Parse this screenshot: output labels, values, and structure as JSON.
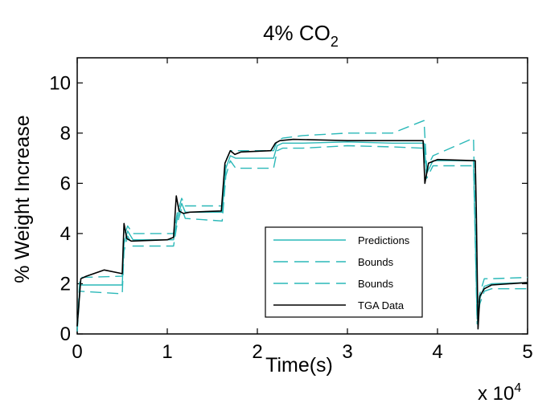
{
  "chart_data": {
    "type": "line",
    "title": "4% CO",
    "title_subscript": "2",
    "xlabel": "Time(s)",
    "ylabel": "% Weight Increase",
    "x_multiplier_label": "x 10",
    "x_multiplier_exponent": "4",
    "xlim": [
      0,
      5
    ],
    "ylim": [
      0,
      11
    ],
    "xticks": [
      0,
      1,
      2,
      3,
      4,
      5
    ],
    "yticks": [
      0,
      2,
      4,
      6,
      8,
      10
    ],
    "grid": false,
    "legend_position": "lower-right",
    "colors": {
      "predictions": "#2ab8b8",
      "bounds": "#2ab8b8",
      "tga": "#000000",
      "axis": "#000000"
    },
    "series": [
      {
        "name": "Predictions",
        "style": "solid",
        "color": "#2ab8b8",
        "x": [
          0,
          0.03,
          0.5,
          0.52,
          0.56,
          0.62,
          1.07,
          1.11,
          1.16,
          1.2,
          1.61,
          1.65,
          1.7,
          1.76,
          2.18,
          2.22,
          2.28,
          2.5,
          3.0,
          3.5,
          3.85,
          3.88,
          3.95,
          4.4,
          4.44,
          4.47,
          4.52,
          4.6,
          5.0
        ],
        "y": [
          0.2,
          1.95,
          1.95,
          3.6,
          4.1,
          3.75,
          3.75,
          4.6,
          5.2,
          4.85,
          4.85,
          6.6,
          7.1,
          7.0,
          7.0,
          7.5,
          7.6,
          7.6,
          7.65,
          7.6,
          7.6,
          6.4,
          6.9,
          6.9,
          0.6,
          1.4,
          1.9,
          2.0,
          2.05
        ]
      },
      {
        "name": "Bounds",
        "style": "dashed",
        "color": "#2ab8b8",
        "x": [
          0,
          0.03,
          0.5,
          0.52,
          0.56,
          0.62,
          1.07,
          1.11,
          1.16,
          1.2,
          1.61,
          1.65,
          1.7,
          1.76,
          2.18,
          2.22,
          2.28,
          2.5,
          3.0,
          3.5,
          3.85,
          3.88,
          3.95,
          4.4,
          4.44,
          4.47,
          4.52,
          4.6,
          5.0
        ],
        "y": [
          0.1,
          1.7,
          1.6,
          3.3,
          3.9,
          3.5,
          3.5,
          4.4,
          5.0,
          4.6,
          4.5,
          6.3,
          6.9,
          6.6,
          6.6,
          7.3,
          7.4,
          7.4,
          7.5,
          7.45,
          7.4,
          6.2,
          6.7,
          6.7,
          0.4,
          1.2,
          1.7,
          1.8,
          1.8
        ]
      },
      {
        "name": "Bounds",
        "style": "dashed",
        "color": "#2ab8b8",
        "x": [
          0,
          0.03,
          0.5,
          0.52,
          0.56,
          0.62,
          1.07,
          1.11,
          1.16,
          1.2,
          1.61,
          1.65,
          1.7,
          1.76,
          2.18,
          2.22,
          2.28,
          2.5,
          3.0,
          3.5,
          3.85,
          3.88,
          3.95,
          4.4,
          4.44,
          4.47,
          4.52,
          4.6,
          5.0
        ],
        "y": [
          0.3,
          2.25,
          2.3,
          3.9,
          4.3,
          4.0,
          4.0,
          4.8,
          5.4,
          5.1,
          5.1,
          6.9,
          7.3,
          7.3,
          7.3,
          7.7,
          7.8,
          7.9,
          8.0,
          8.0,
          8.5,
          6.6,
          7.1,
          7.8,
          0.8,
          1.6,
          2.2,
          2.2,
          2.25
        ]
      },
      {
        "name": "TGA Data",
        "style": "solid",
        "color": "#000000",
        "x": [
          0,
          0.04,
          0.1,
          0.3,
          0.5,
          0.52,
          0.55,
          0.6,
          1.0,
          1.07,
          1.1,
          1.13,
          1.18,
          1.25,
          1.6,
          1.64,
          1.7,
          1.75,
          1.82,
          2.15,
          2.2,
          2.25,
          2.4,
          3.0,
          3.5,
          3.84,
          3.86,
          3.9,
          4.0,
          4.42,
          4.43,
          4.45,
          4.47,
          4.52,
          4.6,
          4.8,
          5.0
        ],
        "y": [
          0.3,
          2.2,
          2.3,
          2.55,
          2.4,
          4.4,
          3.8,
          3.7,
          3.75,
          3.85,
          5.5,
          4.9,
          4.8,
          4.85,
          4.9,
          6.8,
          7.3,
          7.15,
          7.25,
          7.3,
          7.6,
          7.7,
          7.75,
          7.7,
          7.7,
          7.7,
          6.0,
          6.8,
          6.95,
          6.9,
          5.0,
          0.2,
          1.5,
          1.8,
          1.95,
          2.0,
          2.05
        ]
      }
    ]
  }
}
